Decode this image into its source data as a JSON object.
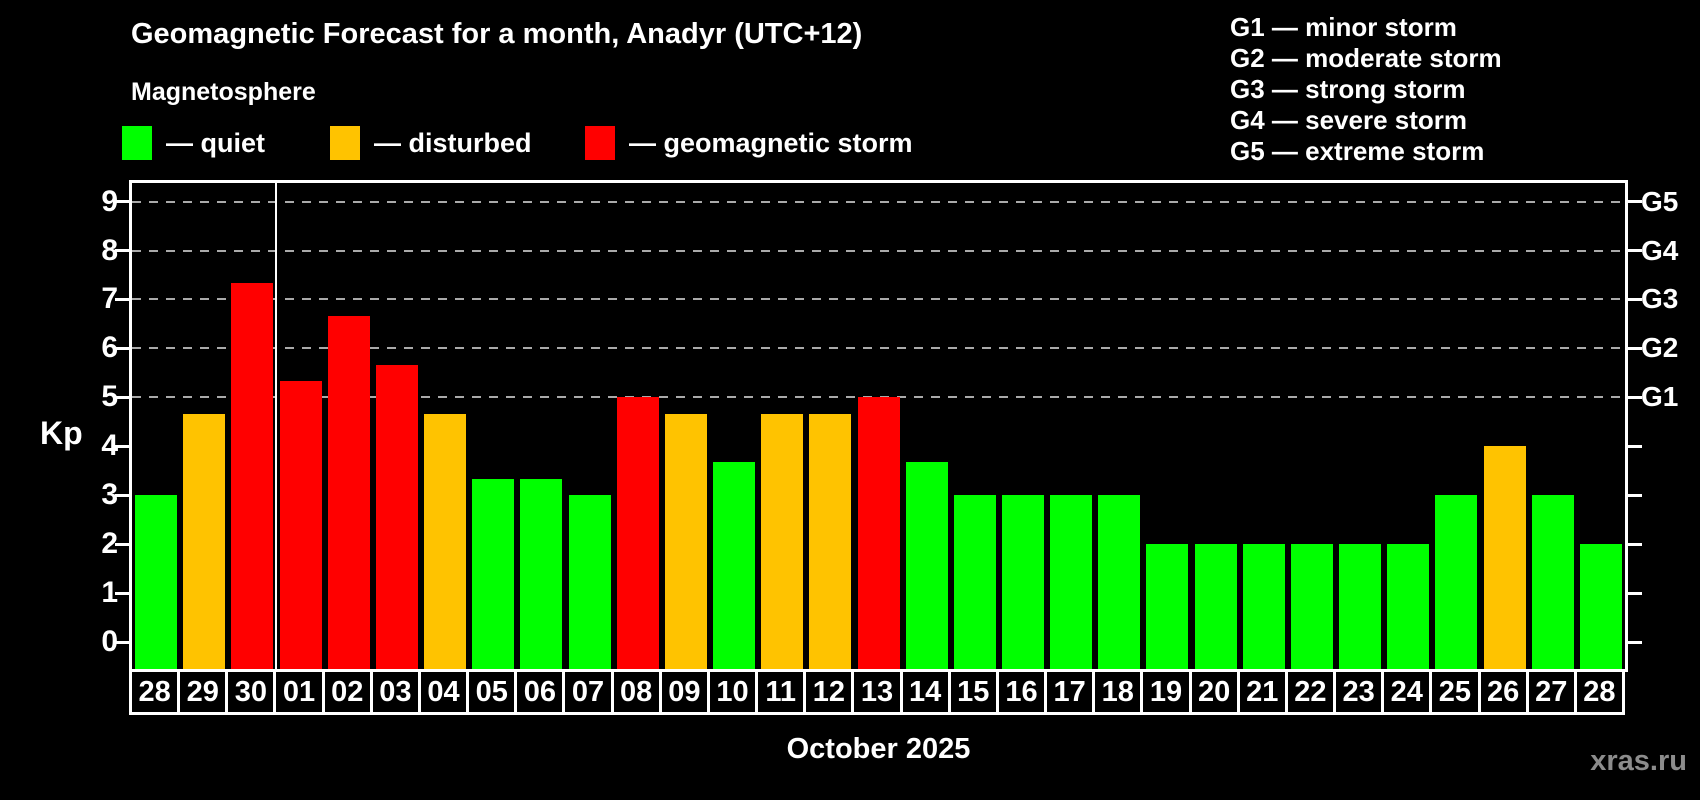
{
  "watermark": "xras.ru",
  "colors": {
    "quiet": "#00ff00",
    "disturbed": "#ffc300",
    "storm": "#ff0000",
    "axis": "#ffffff",
    "grid": "#aaaaaa",
    "text": "#ffffff",
    "watermark": "#8c8c8c",
    "background": "#000000"
  },
  "chart_data": {
    "type": "bar",
    "title": "Geomagnetic Forecast for a month, Anadyr (UTC+12)",
    "subtitle": "Magnetosphere",
    "xlabel": "October 2025",
    "ylabel": "Kp",
    "legend_position": "top-left",
    "legend_items": [
      {
        "key": "quiet",
        "label": "— quiet"
      },
      {
        "key": "disturbed",
        "label": "— disturbed"
      },
      {
        "key": "storm",
        "label": "— geomagnetic storm"
      }
    ],
    "g_legend_lines": [
      "G1 — minor storm",
      "G2 — moderate storm",
      "G3 — strong storm",
      "G4 — severe storm",
      "G5 — extreme storm"
    ],
    "right_axis": [
      {
        "label": "G1",
        "value": 5
      },
      {
        "label": "G2",
        "value": 6
      },
      {
        "label": "G3",
        "value": 7
      },
      {
        "label": "G4",
        "value": 8
      },
      {
        "label": "G5",
        "value": 9
      }
    ],
    "yticks": [
      0,
      1,
      2,
      3,
      4,
      5,
      6,
      7,
      8,
      9
    ],
    "gridlines_at": [
      5,
      6,
      7,
      8,
      9
    ],
    "grid": true,
    "ylim": [
      -0.55,
      9.38
    ],
    "month_separator_after_category_index": 2,
    "categories": [
      "28",
      "29",
      "30",
      "01",
      "02",
      "03",
      "04",
      "05",
      "06",
      "07",
      "08",
      "09",
      "10",
      "11",
      "12",
      "13",
      "14",
      "15",
      "16",
      "17",
      "18",
      "19",
      "20",
      "21",
      "22",
      "23",
      "24",
      "25",
      "26",
      "27",
      "28"
    ],
    "values": [
      3,
      4.67,
      7.33,
      5.33,
      6.67,
      5.67,
      4.67,
      3.33,
      3.33,
      3,
      5,
      4.67,
      3.67,
      4.67,
      4.67,
      5,
      3.67,
      3,
      3,
      3,
      3,
      2,
      2,
      2,
      2,
      2,
      2,
      3,
      4,
      3,
      2
    ],
    "statuses": [
      "quiet",
      "disturbed",
      "storm",
      "storm",
      "storm",
      "storm",
      "disturbed",
      "quiet",
      "quiet",
      "quiet",
      "storm",
      "disturbed",
      "quiet",
      "disturbed",
      "disturbed",
      "storm",
      "quiet",
      "quiet",
      "quiet",
      "quiet",
      "quiet",
      "quiet",
      "quiet",
      "quiet",
      "quiet",
      "quiet",
      "quiet",
      "quiet",
      "disturbed",
      "quiet",
      "quiet"
    ]
  }
}
